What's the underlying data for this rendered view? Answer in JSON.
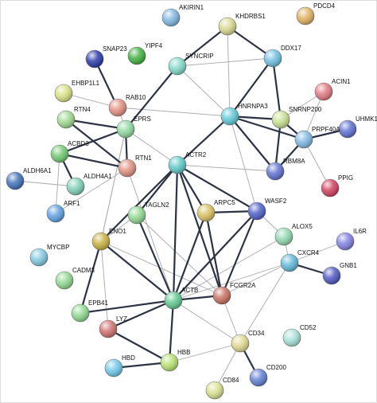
{
  "nodes": [
    "AKIRIN1",
    "PDCD4",
    "KHDRBS1",
    "SNAP23",
    "YIPF4",
    "SYNCRIP",
    "DDX17",
    "EHBP1L1",
    "RAB10",
    "ACIN1",
    "RTN4",
    "HNRNPA3",
    "SNRNP200",
    "UHMK1",
    "EPRS",
    "PRPF40A",
    "ACBD3",
    "RTN1",
    "ACTR2",
    "RBM8A",
    "ALDH6A1",
    "ALDH4A1",
    "PPIG",
    "ARPC5",
    "WASF2",
    "TAGLN2",
    "ARF1",
    "ENO1",
    "ALOX5",
    "IL6R",
    "MYCBP",
    "CXCR4",
    "GNB1",
    "CADM3",
    "FCGR2A",
    "ACTB",
    "EPB41",
    "LYZ",
    "CD34",
    "CD52",
    "HBB",
    "HBD",
    "CD200",
    "CD84"
  ]
}
